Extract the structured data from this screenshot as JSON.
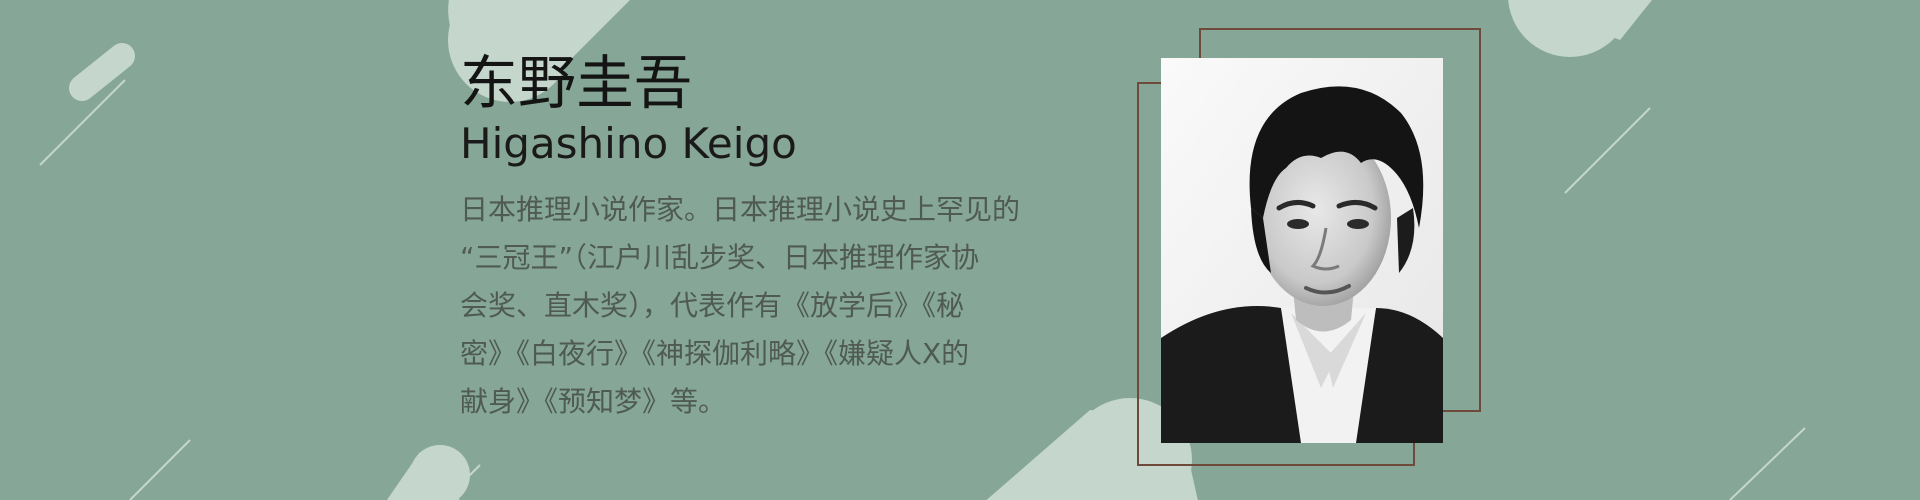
{
  "author": {
    "name_zh": "东野圭吾",
    "name_en": "Higashino Keigo",
    "bio_lines": [
      "日本推理小说作家。日本推理小说史上罕见的",
      "“三冠王”（江户川乱步奖、日本推理作家协",
      "会奖、直木奖），代表作有《放学后》《秘",
      "密》《白夜行》《神探伽利略》《嫌疑人X的",
      "献身》《预知梦》等。"
    ]
  },
  "colors": {
    "background": "#86a797",
    "accent_shapes": "#c5d6cd",
    "frame": "#6e4a3a"
  }
}
